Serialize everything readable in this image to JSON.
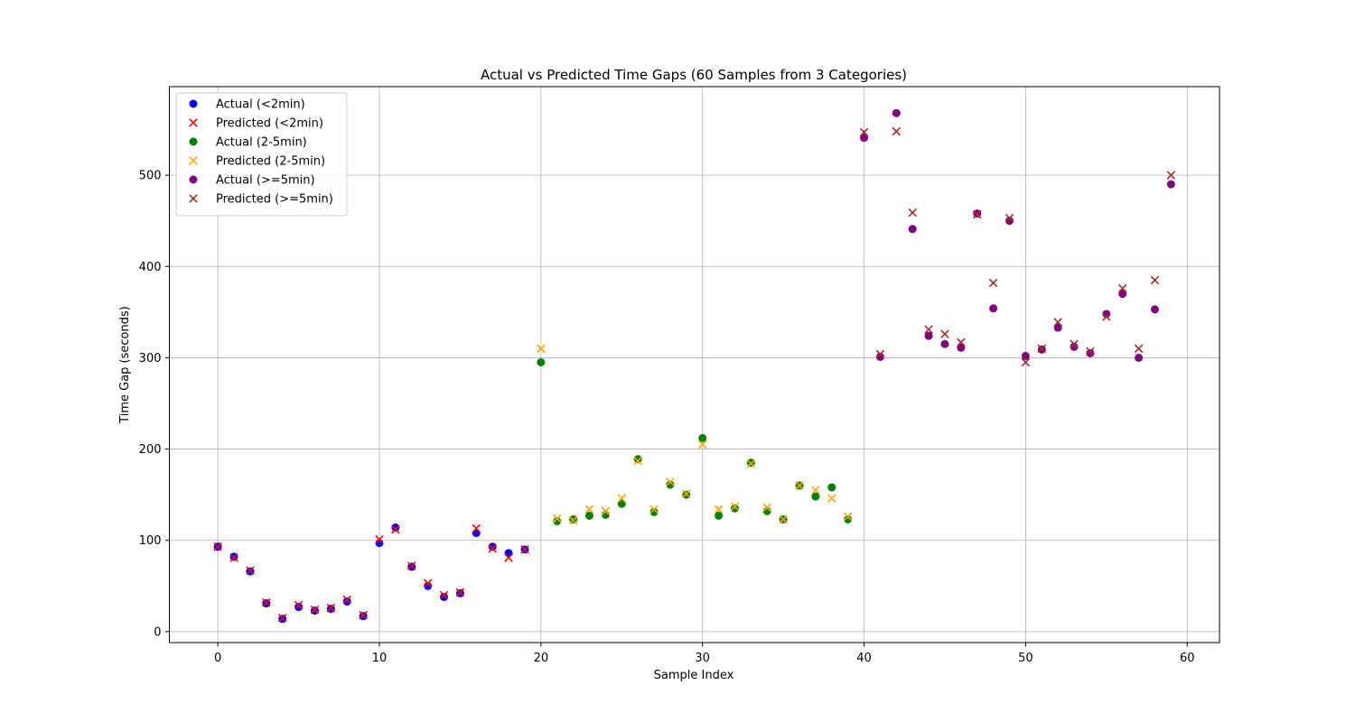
{
  "chart_data": {
    "type": "scatter",
    "title": "Actual vs Predicted Time Gaps (60 Samples from 3 Categories)",
    "xlabel": "Sample Index",
    "ylabel": "Time Gap (seconds)",
    "xlim": [
      -3,
      62
    ],
    "ylim": [
      -12,
      597
    ],
    "xticks": [
      0,
      10,
      20,
      30,
      40,
      50,
      60
    ],
    "yticks": [
      0,
      100,
      200,
      300,
      400,
      500
    ],
    "grid": true,
    "legend_position": "top-left",
    "series": [
      {
        "name": "Actual (<2min)",
        "marker": "circle",
        "color": "#0000ff",
        "x": [
          0,
          1,
          2,
          3,
          4,
          5,
          6,
          7,
          8,
          9,
          10,
          11,
          12,
          13,
          14,
          15,
          16,
          17,
          18,
          19
        ],
        "y": [
          93,
          82,
          66,
          31,
          14,
          27,
          23,
          25,
          33,
          17,
          97,
          114,
          71,
          50,
          38,
          42,
          108,
          93,
          86,
          90
        ]
      },
      {
        "name": "Predicted (<2min)",
        "marker": "x",
        "color": "#ff0000",
        "x": [
          0,
          1,
          2,
          3,
          4,
          5,
          6,
          7,
          8,
          9,
          10,
          11,
          12,
          13,
          14,
          15,
          16,
          17,
          18,
          19
        ],
        "y": [
          93,
          81,
          67,
          32,
          15,
          29,
          24,
          26,
          35,
          18,
          101,
          112,
          72,
          53,
          40,
          43,
          113,
          91,
          81,
          90
        ]
      },
      {
        "name": "Actual (2-5min)",
        "marker": "circle",
        "color": "#008000",
        "x": [
          20,
          21,
          22,
          23,
          24,
          25,
          26,
          27,
          28,
          29,
          30,
          31,
          32,
          33,
          34,
          35,
          36,
          37,
          38,
          39
        ],
        "y": [
          295,
          121,
          123,
          127,
          128,
          140,
          189,
          131,
          161,
          150,
          212,
          127,
          135,
          185,
          132,
          123,
          160,
          148,
          158,
          123
        ]
      },
      {
        "name": "Predicted (2-5min)",
        "marker": "x",
        "color": "#ffa500",
        "x": [
          20,
          21,
          22,
          23,
          24,
          25,
          26,
          27,
          28,
          29,
          30,
          31,
          32,
          33,
          34,
          35,
          36,
          37,
          38,
          39
        ],
        "y": [
          310,
          124,
          122,
          134,
          132,
          146,
          187,
          134,
          164,
          151,
          205,
          134,
          137,
          184,
          136,
          123,
          160,
          155,
          146,
          126
        ]
      },
      {
        "name": "Actual (>=5min)",
        "marker": "circle",
        "color": "#800080",
        "x": [
          40,
          41,
          42,
          43,
          44,
          45,
          46,
          47,
          48,
          49,
          50,
          51,
          52,
          53,
          54,
          55,
          56,
          57,
          58,
          59
        ],
        "y": [
          541,
          301,
          568,
          441,
          324,
          315,
          311,
          458,
          354,
          450,
          302,
          309,
          333,
          312,
          305,
          348,
          370,
          300,
          353,
          490
        ]
      },
      {
        "name": "Predicted (>=5min)",
        "marker": "x",
        "color": "#a52a2a",
        "x": [
          40,
          41,
          42,
          43,
          44,
          45,
          46,
          47,
          48,
          49,
          50,
          51,
          52,
          53,
          54,
          55,
          56,
          57,
          58,
          59
        ],
        "y": [
          547,
          304,
          548,
          459,
          331,
          326,
          317,
          457,
          382,
          453,
          295,
          310,
          339,
          315,
          307,
          345,
          376,
          310,
          385,
          500
        ]
      }
    ]
  }
}
